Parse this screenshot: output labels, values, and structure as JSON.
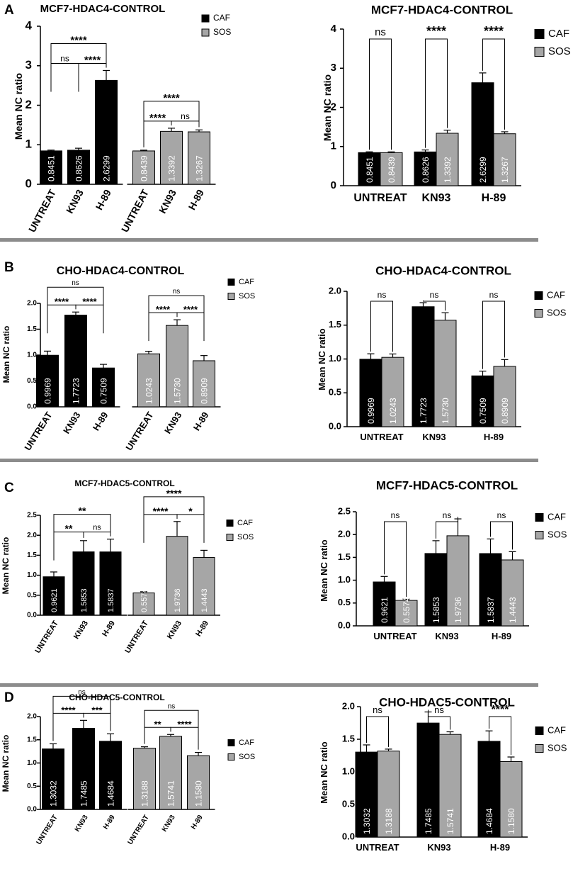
{
  "colors": {
    "caf": "#000000",
    "sos": "#a6a6a6",
    "separator": "#8c8c8c",
    "axis": "#000000"
  },
  "chart_data": [
    {
      "panel": "A",
      "title": "MCF7-HDAC4-CONTROL",
      "type": "bar",
      "layout": "separate",
      "categories": [
        "UNTREAT",
        "KN93",
        "H-89"
      ],
      "series": [
        {
          "name": "CAF",
          "values": [
            0.8451,
            0.8626,
            2.6299
          ],
          "labels": [
            "0.8451",
            "0.8626",
            "2.6299"
          ],
          "errors": [
            0.02,
            0.05,
            0.25
          ]
        },
        {
          "name": "SOS",
          "values": [
            0.8439,
            1.3392,
            1.3267
          ],
          "labels": [
            "0.8439",
            "1.3392",
            "1.3267"
          ],
          "errors": [
            0.02,
            0.08,
            0.05
          ]
        }
      ],
      "ylabel": "Mean NC ratio",
      "ylim": [
        0,
        4
      ],
      "yticks": [
        0,
        1,
        2,
        3,
        4
      ],
      "ytick_labels": [
        "0",
        "1",
        "2",
        "3",
        "4"
      ],
      "legend": [
        "CAF",
        "SOS"
      ],
      "significance": [
        {
          "series": 0,
          "from": 0,
          "to": 1,
          "label": "ns"
        },
        {
          "series": 0,
          "from": 1,
          "to": 2,
          "label": "****"
        },
        {
          "series": 0,
          "from": 0,
          "to": 2,
          "label": "****"
        },
        {
          "series": 1,
          "from": 0,
          "to": 1,
          "label": "****"
        },
        {
          "series": 1,
          "from": 1,
          "to": 2,
          "label": "ns"
        },
        {
          "series": 1,
          "from": 0,
          "to": 2,
          "label": "****"
        }
      ]
    },
    {
      "panel": "A",
      "title": "MCF7-HDAC4-CONTROL",
      "type": "bar",
      "layout": "grouped",
      "categories": [
        "UNTREAT",
        "KN93",
        "H-89"
      ],
      "series": [
        {
          "name": "CAF",
          "values": [
            0.8451,
            0.8626,
            2.6299
          ],
          "labels": [
            "0.8451",
            "0.8626",
            "2.6299"
          ],
          "errors": [
            0.02,
            0.05,
            0.25
          ]
        },
        {
          "name": "SOS",
          "values": [
            0.8439,
            1.3392,
            1.3267
          ],
          "labels": [
            "0.8439",
            "1.3392",
            "1.3267"
          ],
          "errors": [
            0.02,
            0.08,
            0.05
          ]
        }
      ],
      "ylabel": "Mean NC ratio",
      "ylim": [
        0,
        4
      ],
      "yticks": [
        0,
        1,
        2,
        3,
        4
      ],
      "ytick_labels": [
        "0",
        "1",
        "2",
        "3",
        "4"
      ],
      "legend": [
        "CAF",
        "SOS"
      ],
      "significance": [
        {
          "category": 0,
          "label": "ns"
        },
        {
          "category": 1,
          "label": "****"
        },
        {
          "category": 2,
          "label": "****"
        }
      ]
    },
    {
      "panel": "B",
      "title": "CHO-HDAC4-CONTROL",
      "type": "bar",
      "layout": "separate",
      "categories": [
        "UNTREAT",
        "KN93",
        "H-89"
      ],
      "series": [
        {
          "name": "CAF",
          "values": [
            0.9969,
            1.7723,
            0.7509
          ],
          "labels": [
            "0.9969",
            "1.7723",
            "0.7509"
          ],
          "errors": [
            0.08,
            0.06,
            0.07
          ]
        },
        {
          "name": "SOS",
          "values": [
            1.0243,
            1.573,
            0.8909
          ],
          "labels": [
            "1.0243",
            "1.5730",
            "0.8909"
          ],
          "errors": [
            0.05,
            0.11,
            0.1
          ]
        }
      ],
      "ylabel": "Mean NC ratio",
      "ylim": [
        0,
        2
      ],
      "yticks": [
        0,
        0.5,
        1,
        1.5,
        2
      ],
      "ytick_labels": [
        "0.0",
        "0.5",
        "1.0",
        "1.5",
        "2.0"
      ],
      "legend": [
        "CAF",
        "SOS"
      ],
      "significance": [
        {
          "series": 0,
          "from": 0,
          "to": 1,
          "label": "****"
        },
        {
          "series": 0,
          "from": 1,
          "to": 2,
          "label": "****"
        },
        {
          "series": 0,
          "from": 0,
          "to": 2,
          "label": "ns"
        },
        {
          "series": 1,
          "from": 0,
          "to": 1,
          "label": "****"
        },
        {
          "series": 1,
          "from": 1,
          "to": 2,
          "label": "****"
        },
        {
          "series": 1,
          "from": 0,
          "to": 2,
          "label": "ns"
        }
      ]
    },
    {
      "panel": "B",
      "title": "CHO-HDAC4-CONTROL",
      "type": "bar",
      "layout": "grouped",
      "categories": [
        "UNTREAT",
        "KN93",
        "H-89"
      ],
      "series": [
        {
          "name": "CAF",
          "values": [
            0.9969,
            1.7723,
            0.7509
          ],
          "labels": [
            "0.9969",
            "1.7723",
            "0.7509"
          ],
          "errors": [
            0.08,
            0.06,
            0.07
          ]
        },
        {
          "name": "SOS",
          "values": [
            1.0243,
            1.573,
            0.8909
          ],
          "labels": [
            "1.0243",
            "1.5730",
            "0.8909"
          ],
          "errors": [
            0.05,
            0.11,
            0.1
          ]
        }
      ],
      "ylabel": "Mean NC ratio",
      "ylim": [
        0,
        2
      ],
      "yticks": [
        0,
        0.5,
        1,
        1.5,
        2
      ],
      "ytick_labels": [
        "0.0",
        "0.5",
        "1.0",
        "1.5",
        "2.0"
      ],
      "legend": [
        "CAF",
        "SOS"
      ],
      "significance": [
        {
          "category": 0,
          "label": "ns"
        },
        {
          "category": 1,
          "label": "ns"
        },
        {
          "category": 2,
          "label": "ns"
        }
      ]
    },
    {
      "panel": "C",
      "title": "MCF7-HDAC5-CONTROL",
      "type": "bar",
      "layout": "separate",
      "categories": [
        "UNTREAT",
        "KN93",
        "H-89"
      ],
      "series": [
        {
          "name": "CAF",
          "values": [
            0.9621,
            1.5853,
            1.5837
          ],
          "labels": [
            "0.9621",
            "1.5853",
            "1.5837"
          ],
          "errors": [
            0.12,
            0.28,
            0.32
          ]
        },
        {
          "name": "SOS",
          "values": [
            0.5574,
            1.9736,
            1.4443
          ],
          "labels": [
            "0.5574",
            "1.9736",
            "1.4443"
          ],
          "errors": [
            0.03,
            0.37,
            0.18
          ]
        }
      ],
      "ylabel": "Mean NC ratio",
      "ylim": [
        0,
        2.5
      ],
      "yticks": [
        0,
        0.5,
        1,
        1.5,
        2,
        2.5
      ],
      "ytick_labels": [
        "0.0",
        "0.5",
        "1.0",
        "1.5",
        "2.0",
        "2.5"
      ],
      "legend": [
        "CAF",
        "SOS"
      ],
      "significance": [
        {
          "series": 0,
          "from": 0,
          "to": 1,
          "label": "**"
        },
        {
          "series": 0,
          "from": 1,
          "to": 2,
          "label": "ns"
        },
        {
          "series": 0,
          "from": 0,
          "to": 2,
          "label": "**"
        },
        {
          "series": 1,
          "from": 0,
          "to": 1,
          "label": "****"
        },
        {
          "series": 1,
          "from": 1,
          "to": 2,
          "label": "*"
        },
        {
          "series": 1,
          "from": 0,
          "to": 2,
          "label": "****"
        }
      ]
    },
    {
      "panel": "C",
      "title": "MCF7-HDAC5-CONTROL",
      "type": "bar",
      "layout": "grouped",
      "categories": [
        "UNTREAT",
        "KN93",
        "H-89"
      ],
      "series": [
        {
          "name": "CAF",
          "values": [
            0.9621,
            1.5853,
            1.5837
          ],
          "labels": [
            "0.9621",
            "1.5853",
            "1.5837"
          ],
          "errors": [
            0.12,
            0.28,
            0.32
          ]
        },
        {
          "name": "SOS",
          "values": [
            0.5574,
            1.9736,
            1.4443
          ],
          "labels": [
            "0.5574",
            "1.9736",
            "1.4443"
          ],
          "errors": [
            0.03,
            0.37,
            0.18
          ]
        }
      ],
      "ylabel": "Mean NC ratio",
      "ylim": [
        0,
        2.5
      ],
      "yticks": [
        0,
        0.5,
        1,
        1.5,
        2,
        2.5
      ],
      "ytick_labels": [
        "0.0",
        "0.5",
        "1.0",
        "1.5",
        "2.0",
        "2.5"
      ],
      "legend": [
        "CAF",
        "SOS"
      ],
      "significance": [
        {
          "category": 0,
          "label": "ns"
        },
        {
          "category": 1,
          "label": "ns"
        },
        {
          "category": 2,
          "label": "ns"
        }
      ]
    },
    {
      "panel": "D",
      "title": "CHO-HDAC5-CONTROL",
      "type": "bar",
      "layout": "separate",
      "categories": [
        "UNTREAT",
        "KN93",
        "H-89"
      ],
      "series": [
        {
          "name": "CAF",
          "values": [
            1.3032,
            1.7485,
            1.4684
          ],
          "labels": [
            "1.3032",
            "1.7485",
            "1.4684"
          ],
          "errors": [
            0.11,
            0.17,
            0.16
          ]
        },
        {
          "name": "SOS",
          "values": [
            1.3188,
            1.5741,
            1.158
          ],
          "labels": [
            "1.3188",
            "1.5741",
            "1.1580"
          ],
          "errors": [
            0.03,
            0.04,
            0.07
          ]
        }
      ],
      "ylabel": "Mean NC ratio",
      "ylim": [
        0,
        2
      ],
      "yticks": [
        0,
        0.5,
        1,
        1.5,
        2
      ],
      "ytick_labels": [
        "0.0",
        "0.5",
        "1.0",
        "1.5",
        "2.0"
      ],
      "legend": [
        "CAF",
        "SOS"
      ],
      "significance": [
        {
          "series": 0,
          "from": 0,
          "to": 1,
          "label": "****"
        },
        {
          "series": 0,
          "from": 1,
          "to": 2,
          "label": "***"
        },
        {
          "series": 0,
          "from": 0,
          "to": 2,
          "label": "ns"
        },
        {
          "series": 1,
          "from": 0,
          "to": 1,
          "label": "**"
        },
        {
          "series": 1,
          "from": 1,
          "to": 2,
          "label": "****"
        },
        {
          "series": 1,
          "from": 0,
          "to": 2,
          "label": "ns"
        }
      ]
    },
    {
      "panel": "D",
      "title": "CHO-HDAC5-CONTROL",
      "type": "bar",
      "layout": "grouped",
      "categories": [
        "UNTREAT",
        "KN93",
        "H-89"
      ],
      "series": [
        {
          "name": "CAF",
          "values": [
            1.3032,
            1.7485,
            1.4684
          ],
          "labels": [
            "1.3032",
            "1.7485",
            "1.4684"
          ],
          "errors": [
            0.11,
            0.17,
            0.16
          ]
        },
        {
          "name": "SOS",
          "values": [
            1.3188,
            1.5741,
            1.158
          ],
          "labels": [
            "1.3188",
            "1.5741",
            "1.1580"
          ],
          "errors": [
            0.03,
            0.04,
            0.07
          ]
        }
      ],
      "ylabel": "Mean NC ratio",
      "ylim": [
        0,
        2
      ],
      "yticks": [
        0,
        0.5,
        1,
        1.5,
        2
      ],
      "ytick_labels": [
        "0.0",
        "0.5",
        "1.0",
        "1.5",
        "2.0"
      ],
      "legend": [
        "CAF",
        "SOS"
      ],
      "significance": [
        {
          "category": 0,
          "label": "ns"
        },
        {
          "category": 1,
          "label": "ns"
        },
        {
          "category": 2,
          "label": "****"
        }
      ]
    }
  ]
}
